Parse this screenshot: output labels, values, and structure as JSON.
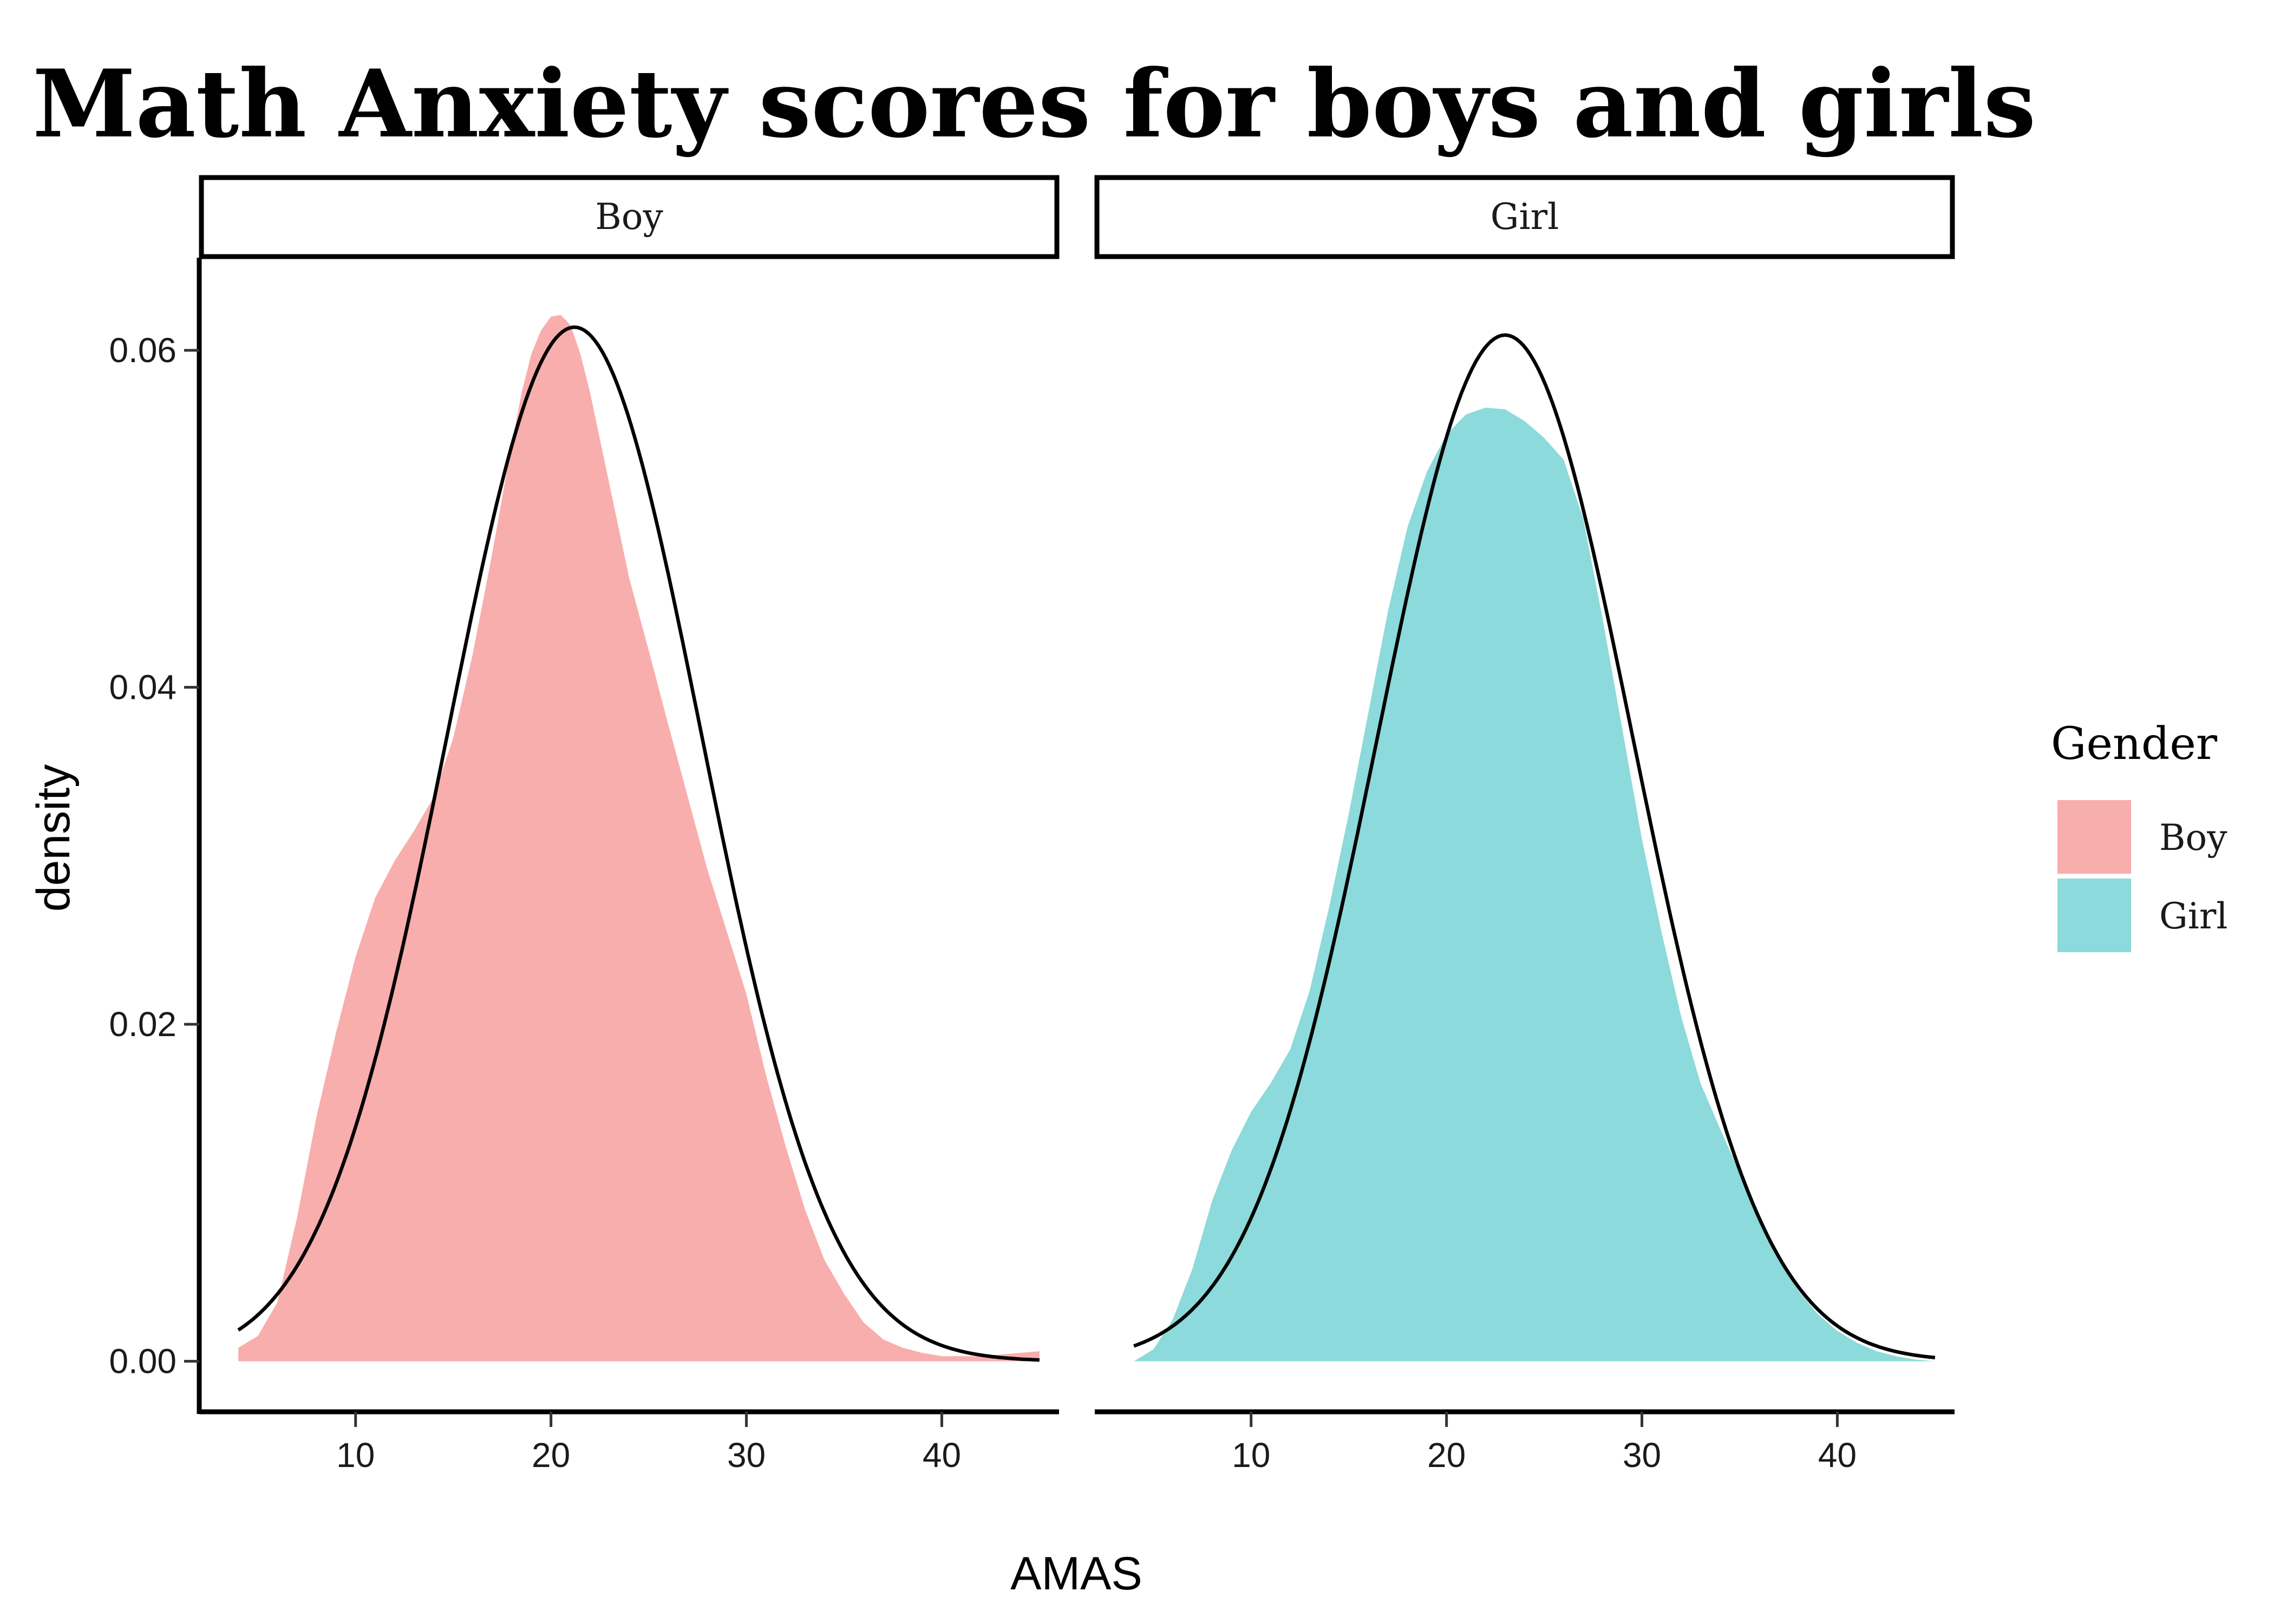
{
  "chart_data": {
    "type": "area",
    "title": "Math Anxiety scores for boys and girls",
    "xlabel": "AMAS",
    "ylabel": "density",
    "xlim": [
      2,
      46
    ],
    "ylim": [
      -0.003,
      0.0655
    ],
    "x_ticks": [
      10,
      20,
      30,
      40
    ],
    "x_tick_labels": [
      "10",
      "20",
      "30",
      "40"
    ],
    "y_ticks": [
      0.0,
      0.02,
      0.04,
      0.06
    ],
    "y_tick_labels": [
      "0.00",
      "0.02",
      "0.04",
      "0.06"
    ],
    "grid": false,
    "legend": {
      "title": "Gender",
      "position": "right",
      "entries": [
        {
          "label": "Boy",
          "color": "#F8AEAD"
        },
        {
          "label": "Girl",
          "color": "#8CDADB"
        }
      ]
    },
    "normal_curve_color": "#000000",
    "panels": [
      {
        "strip": "Boy",
        "fill_color": "#F8AEAD",
        "density": {
          "x": [
            4,
            5,
            6,
            7,
            8,
            9,
            10,
            11,
            12,
            13,
            14,
            15,
            16,
            17,
            18,
            18.5,
            19,
            19.5,
            20,
            20.5,
            21,
            21.5,
            22,
            23,
            24,
            25,
            26,
            27,
            28,
            29,
            30,
            31,
            32,
            33,
            34,
            35,
            36,
            37,
            38,
            39,
            40,
            41,
            42,
            43,
            44,
            45
          ],
          "y": [
            0.0008,
            0.0015,
            0.0035,
            0.0085,
            0.0145,
            0.0195,
            0.024,
            0.0275,
            0.0297,
            0.0315,
            0.0335,
            0.037,
            0.042,
            0.048,
            0.0545,
            0.0575,
            0.0598,
            0.0612,
            0.062,
            0.0621,
            0.0615,
            0.0598,
            0.0575,
            0.052,
            0.0465,
            0.0422,
            0.0378,
            0.0335,
            0.0292,
            0.0255,
            0.0218,
            0.017,
            0.0128,
            0.009,
            0.006,
            0.004,
            0.0023,
            0.0013,
            0.0008,
            0.0005,
            0.0003,
            0.0003,
            0.0003,
            0.0004,
            0.0005,
            0.0006
          ]
        },
        "normal_fit": {
          "mean": 21.2,
          "sd": 6.5,
          "x_range": [
            4,
            45
          ]
        }
      },
      {
        "strip": "Girl",
        "fill_color": "#8CDADB",
        "density": {
          "x": [
            4,
            5,
            6,
            7,
            8,
            9,
            10,
            11,
            12,
            13,
            14,
            15,
            16,
            17,
            18,
            19,
            20,
            21,
            22,
            23,
            24,
            25,
            26,
            27,
            28,
            29,
            30,
            31,
            32,
            33,
            34,
            35,
            36,
            37,
            38,
            39,
            40,
            41,
            42,
            43,
            44,
            45
          ],
          "y": [
            0.0,
            0.0007,
            0.0025,
            0.0055,
            0.0095,
            0.0125,
            0.0148,
            0.0165,
            0.0185,
            0.022,
            0.027,
            0.0325,
            0.0385,
            0.0445,
            0.0495,
            0.0528,
            0.055,
            0.0562,
            0.0566,
            0.0565,
            0.0558,
            0.0548,
            0.0535,
            0.05,
            0.044,
            0.0375,
            0.031,
            0.0255,
            0.0205,
            0.0165,
            0.0138,
            0.0112,
            0.0085,
            0.006,
            0.0042,
            0.0028,
            0.0018,
            0.0011,
            0.0006,
            0.0003,
            0.0001,
            0.0
          ]
        },
        "normal_fit": {
          "mean": 23.0,
          "sd": 6.55,
          "x_range": [
            4,
            45
          ]
        }
      }
    ]
  }
}
